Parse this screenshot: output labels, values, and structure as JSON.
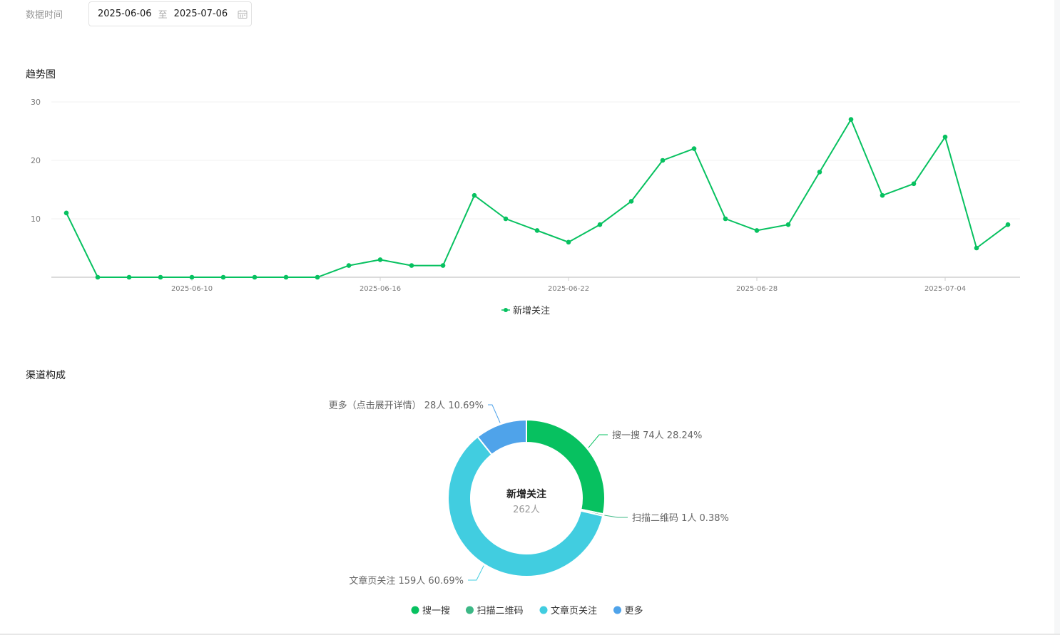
{
  "filter": {
    "label": "数据时间",
    "start_date": "2025-06-06",
    "separator": "至",
    "end_date": "2025-07-06",
    "calendar_icon": "calendar-icon"
  },
  "sections": {
    "trend_title": "趋势图",
    "channel_title": "渠道构成"
  },
  "chart_data": [
    {
      "type": "line",
      "title": "趋势图",
      "x": [
        "2025-06-06",
        "2025-06-07",
        "2025-06-08",
        "2025-06-09",
        "2025-06-10",
        "2025-06-11",
        "2025-06-12",
        "2025-06-13",
        "2025-06-14",
        "2025-06-15",
        "2025-06-16",
        "2025-06-17",
        "2025-06-18",
        "2025-06-19",
        "2025-06-20",
        "2025-06-21",
        "2025-06-22",
        "2025-06-23",
        "2025-06-24",
        "2025-06-25",
        "2025-06-26",
        "2025-06-27",
        "2025-06-28",
        "2025-06-29",
        "2025-06-30",
        "2025-07-01",
        "2025-07-02",
        "2025-07-03",
        "2025-07-04",
        "2025-07-05",
        "2025-07-06"
      ],
      "x_ticks": [
        "2025-06-10",
        "2025-06-16",
        "2025-06-22",
        "2025-06-28",
        "2025-07-04"
      ],
      "y_ticks": [
        10,
        20,
        30
      ],
      "ylim": [
        0,
        30
      ],
      "grid": true,
      "legend": "bottom",
      "color": "#07c160",
      "series": [
        {
          "name": "新增关注",
          "values": [
            11,
            0,
            0,
            0,
            0,
            0,
            0,
            0,
            0,
            2,
            3,
            2,
            2,
            14,
            10,
            8,
            6,
            9,
            13,
            20,
            22,
            10,
            8,
            9,
            18,
            27,
            14,
            16,
            24,
            5,
            9
          ]
        }
      ]
    },
    {
      "type": "pie",
      "title": "渠道构成",
      "center_label": "新增关注",
      "center_value": "262人",
      "legend": "bottom",
      "slices": [
        {
          "name": "搜一搜",
          "value": 74,
          "count_text": "74人",
          "percent_text": "28.24%",
          "color": "#07c160"
        },
        {
          "name": "扫描二维码",
          "value": 1,
          "count_text": "1人",
          "percent_text": "0.38%",
          "color": "#3cb886"
        },
        {
          "name": "文章页关注",
          "value": 159,
          "count_text": "159人",
          "percent_text": "60.69%",
          "color": "#41cde0"
        },
        {
          "name": "更多",
          "label": "更多（点击展开详情）",
          "value": 28,
          "count_text": "28人",
          "percent_text": "10.69%",
          "color": "#4fa3ea"
        }
      ]
    }
  ]
}
